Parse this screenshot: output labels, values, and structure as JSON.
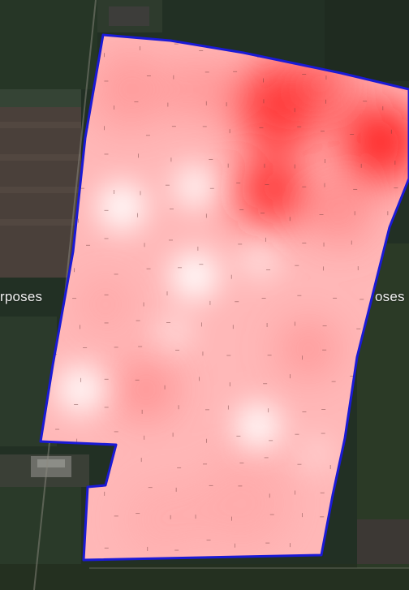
{
  "map": {
    "basemap": "satellite-imagery",
    "watermark_left": "rposes",
    "watermark_right": "oses"
  },
  "field_boundary": {
    "stroke_color": "#1a1ad6"
  },
  "heatmap": {
    "low_color": "#ffffff",
    "mid_color": "#ff9a9a",
    "high_color": "#ff0000"
  }
}
